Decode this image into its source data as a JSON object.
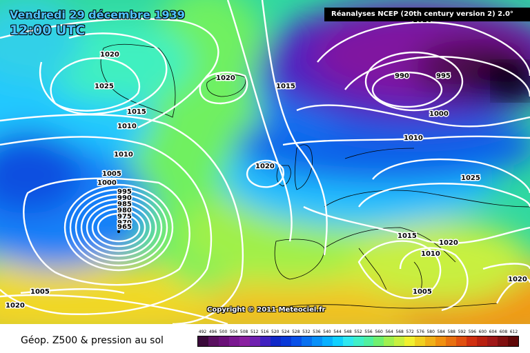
{
  "header": {
    "date": "Vendredi 29 décembre 1939",
    "time": "12:00 UTC",
    "source": "Réanalyses NCEP (20th century version 2) 2.0°"
  },
  "copyright": "Copyright © 2011 Meteociel.fr",
  "footer": {
    "caption": "Géop. Z500 & pression au sol"
  },
  "legend": {
    "values": [
      "492",
      "496",
      "500",
      "504",
      "508",
      "512",
      "516",
      "520",
      "524",
      "528",
      "532",
      "536",
      "540",
      "544",
      "548",
      "552",
      "556",
      "560",
      "564",
      "568",
      "572",
      "576",
      "580",
      "584",
      "588",
      "592",
      "596",
      "600",
      "604",
      "608",
      "612"
    ],
    "colors": [
      "#3a0a3a",
      "#5a1060",
      "#6a1078",
      "#7a1890",
      "#8a20a0",
      "#7020b0",
      "#4020c0",
      "#1028c8",
      "#0838d8",
      "#0850e8",
      "#0870f0",
      "#0890f8",
      "#08b0ff",
      "#10d0ff",
      "#30e8f0",
      "#40f0c8",
      "#50f0a0",
      "#70f070",
      "#a0f050",
      "#c8f040",
      "#f0f030",
      "#f0d020",
      "#f0b018",
      "#f09010",
      "#e87010",
      "#e05010",
      "#d03010",
      "#b82010",
      "#a01818",
      "#801010",
      "#600808"
    ]
  },
  "map": {
    "pressure_labels": [
      "1020",
      "1025",
      "1020",
      "1015",
      "1010",
      "1010",
      "1005",
      "1000",
      "995",
      "990",
      "985",
      "980",
      "975",
      "970",
      "965",
      "1020",
      "1015",
      "1020",
      "990",
      "995",
      "1000",
      "1010",
      "1025",
      "1015",
      "1020",
      "1010",
      "1005",
      "1020",
      "1020",
      "1005"
    ]
  }
}
